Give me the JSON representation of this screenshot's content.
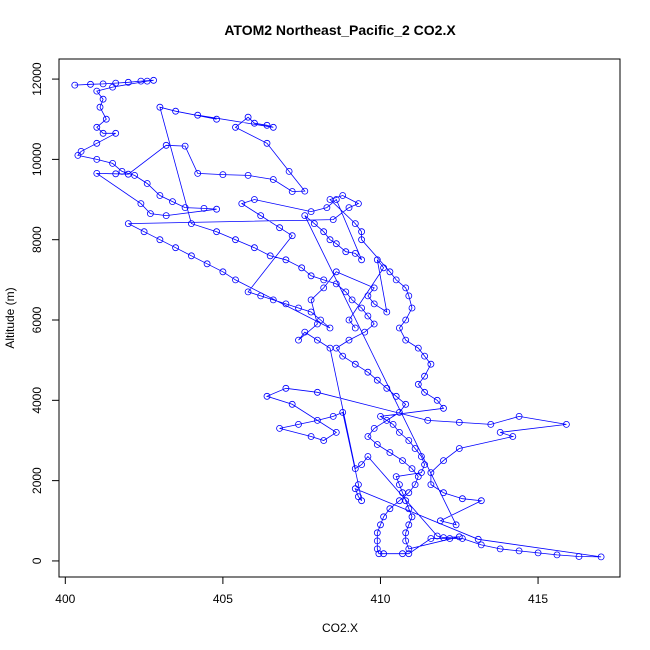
{
  "chart_data": {
    "type": "scatter",
    "title": "ATOM2 Northeast_Pacific_2 CO2.X",
    "xlabel": "CO2.X",
    "ylabel": "Altitude (m)",
    "xlim": [
      399.8,
      417.6
    ],
    "ylim": [
      -400,
      12500
    ],
    "xticks": [
      400,
      405,
      410,
      415
    ],
    "yticks": [
      0,
      2000,
      4000,
      6000,
      8000,
      10000,
      12000
    ],
    "grid": false,
    "marker": "open-circle",
    "color": "#0000ff",
    "series": [
      {
        "points": [
          [
            400.3,
            11850
          ],
          [
            400.8,
            11870
          ],
          [
            401.2,
            11880
          ],
          [
            401.6,
            11900
          ],
          [
            402.0,
            11920
          ],
          [
            402.4,
            11950
          ],
          [
            402.8,
            11970
          ],
          [
            402.6,
            11950
          ],
          [
            401.5,
            11800
          ],
          [
            401.0,
            11700
          ],
          [
            401.2,
            11500
          ],
          [
            401.1,
            11300
          ],
          [
            401.3,
            11000
          ],
          [
            401.0,
            10800
          ],
          [
            401.2,
            10650
          ],
          [
            401.6,
            10650
          ],
          [
            401.0,
            10400
          ],
          [
            400.5,
            10200
          ],
          [
            400.4,
            10100
          ],
          [
            401.0,
            10000
          ],
          [
            401.5,
            9900
          ],
          [
            401.8,
            9700
          ],
          [
            402.2,
            9600
          ],
          [
            402.6,
            9400
          ],
          [
            403.0,
            9100
          ],
          [
            403.4,
            8950
          ],
          [
            403.8,
            8800
          ],
          [
            404.4,
            8780
          ],
          [
            404.8,
            8760
          ],
          [
            403.2,
            8600
          ],
          [
            402.7,
            8650
          ],
          [
            402.4,
            8900
          ],
          [
            401.0,
            9650
          ],
          [
            401.6,
            9640
          ],
          [
            402.0,
            9630
          ],
          [
            403.2,
            10350
          ],
          [
            403.8,
            10330
          ],
          [
            404.2,
            9650
          ],
          [
            405.0,
            9620
          ],
          [
            405.8,
            9600
          ],
          [
            406.6,
            9500
          ],
          [
            407.2,
            9200
          ],
          [
            407.6,
            9210
          ],
          [
            407.1,
            9700
          ],
          [
            406.4,
            10400
          ],
          [
            405.4,
            10800
          ],
          [
            405.8,
            11050
          ],
          [
            406.0,
            10900
          ],
          [
            406.4,
            10850
          ],
          [
            406.6,
            10800
          ],
          [
            404.2,
            11100
          ],
          [
            404.8,
            11000
          ],
          [
            403.5,
            11200
          ],
          [
            403.0,
            11300
          ],
          [
            404.0,
            8400
          ],
          [
            404.8,
            8200
          ],
          [
            405.4,
            8000
          ],
          [
            406.0,
            7800
          ],
          [
            406.5,
            7600
          ],
          [
            407.0,
            7500
          ],
          [
            407.5,
            7300
          ],
          [
            407.8,
            7100
          ],
          [
            408.2,
            7000
          ],
          [
            408.6,
            6900
          ],
          [
            408.9,
            6700
          ],
          [
            409.1,
            6500
          ],
          [
            409.4,
            6300
          ],
          [
            409.6,
            6100
          ],
          [
            409.8,
            5900
          ],
          [
            409.5,
            5700
          ],
          [
            409.0,
            5500
          ],
          [
            408.6,
            5300
          ],
          [
            408.8,
            5100
          ],
          [
            409.2,
            4900
          ],
          [
            409.6,
            4700
          ],
          [
            409.9,
            4500
          ],
          [
            410.2,
            4300
          ],
          [
            410.5,
            4100
          ],
          [
            410.8,
            3900
          ],
          [
            410.6,
            3700
          ],
          [
            410.2,
            3500
          ],
          [
            409.8,
            3300
          ],
          [
            409.6,
            3100
          ],
          [
            409.9,
            2900
          ],
          [
            410.3,
            2700
          ],
          [
            410.7,
            2500
          ],
          [
            411.0,
            2300
          ],
          [
            411.2,
            2100
          ],
          [
            411.1,
            1900
          ],
          [
            410.9,
            1700
          ],
          [
            410.6,
            1500
          ],
          [
            410.3,
            1300
          ],
          [
            410.1,
            1100
          ],
          [
            410.0,
            900
          ],
          [
            409.9,
            700
          ],
          [
            409.9,
            500
          ],
          [
            409.9,
            300
          ],
          [
            409.95,
            180
          ],
          [
            410.1,
            180
          ],
          [
            410.7,
            180
          ],
          [
            410.9,
            180
          ],
          [
            411.6,
            560
          ],
          [
            412.2,
            560
          ],
          [
            412.6,
            560
          ],
          [
            413.2,
            400
          ],
          [
            413.8,
            300
          ],
          [
            414.4,
            250
          ],
          [
            415.0,
            200
          ],
          [
            415.6,
            150
          ],
          [
            416.3,
            110
          ],
          [
            417.0,
            100
          ],
          [
            413.1,
            540
          ],
          [
            409.2,
            1800
          ],
          [
            409.3,
            1600
          ],
          [
            409.4,
            1500
          ],
          [
            409.3,
            1900
          ],
          [
            408.8,
            3700
          ],
          [
            408.5,
            3600
          ],
          [
            408.0,
            3500
          ],
          [
            407.4,
            3400
          ],
          [
            406.8,
            3300
          ],
          [
            407.8,
            3100
          ],
          [
            408.2,
            3000
          ],
          [
            408.6,
            3200
          ],
          [
            407.2,
            3900
          ],
          [
            406.4,
            4100
          ],
          [
            407.0,
            4300
          ],
          [
            408.0,
            4200
          ],
          [
            411.5,
            3500
          ],
          [
            412.5,
            3450
          ],
          [
            413.5,
            3400
          ],
          [
            414.4,
            3600
          ],
          [
            415.9,
            3400
          ],
          [
            413.8,
            3200
          ],
          [
            414.2,
            3100
          ],
          [
            412.5,
            2800
          ],
          [
            412.0,
            2500
          ],
          [
            411.6,
            2200
          ],
          [
            411.6,
            1900
          ],
          [
            412.0,
            1700
          ],
          [
            412.6,
            1550
          ],
          [
            413.2,
            1500
          ],
          [
            411.9,
            1000
          ],
          [
            412.4,
            900
          ],
          [
            407.6,
            8600
          ],
          [
            407.9,
            8400
          ],
          [
            408.2,
            8200
          ],
          [
            408.4,
            8000
          ],
          [
            408.6,
            7900
          ],
          [
            408.9,
            7700
          ],
          [
            409.2,
            7660
          ],
          [
            409.4,
            7500
          ],
          [
            408.6,
            9000
          ],
          [
            408.3,
            8800
          ],
          [
            407.8,
            8700
          ],
          [
            406.0,
            9000
          ],
          [
            405.6,
            8900
          ],
          [
            406.2,
            8600
          ],
          [
            406.8,
            8300
          ],
          [
            407.2,
            8100
          ],
          [
            405.8,
            6700
          ],
          [
            406.2,
            6600
          ],
          [
            406.6,
            6500
          ],
          [
            407.0,
            6400
          ],
          [
            407.4,
            6300
          ],
          [
            407.8,
            6200
          ],
          [
            408.1,
            6000
          ],
          [
            408.4,
            5800
          ],
          [
            405.4,
            7000
          ],
          [
            405.0,
            7200
          ],
          [
            404.5,
            7400
          ],
          [
            404.0,
            7600
          ],
          [
            403.5,
            7800
          ],
          [
            403.0,
            8000
          ],
          [
            402.5,
            8200
          ],
          [
            402.0,
            8400
          ],
          [
            408.5,
            8500
          ],
          [
            409.0,
            8800
          ],
          [
            409.3,
            8900
          ],
          [
            408.8,
            9100
          ],
          [
            408.4,
            9000
          ],
          [
            409.2,
            8400
          ],
          [
            409.4,
            8200
          ],
          [
            409.4,
            8000
          ],
          [
            410.3,
            7200
          ],
          [
            410.5,
            7000
          ],
          [
            410.8,
            6800
          ],
          [
            410.9,
            6600
          ],
          [
            411.0,
            6300
          ],
          [
            410.8,
            6000
          ],
          [
            410.6,
            5800
          ],
          [
            410.8,
            5500
          ],
          [
            411.2,
            5300
          ],
          [
            411.4,
            5100
          ],
          [
            411.6,
            4900
          ],
          [
            411.4,
            4600
          ],
          [
            411.2,
            4400
          ],
          [
            411.4,
            4200
          ],
          [
            411.8,
            4000
          ],
          [
            412.0,
            3800
          ],
          [
            410.0,
            3600
          ],
          [
            410.4,
            3400
          ],
          [
            410.6,
            3200
          ],
          [
            410.9,
            3000
          ],
          [
            411.1,
            2800
          ],
          [
            411.3,
            2600
          ],
          [
            411.4,
            2400
          ],
          [
            411.3,
            2200
          ],
          [
            410.5,
            2100
          ],
          [
            410.6,
            1900
          ],
          [
            410.7,
            1700
          ],
          [
            410.8,
            1500
          ],
          [
            410.9,
            1300
          ],
          [
            411.0,
            1100
          ],
          [
            410.9,
            900
          ],
          [
            410.8,
            700
          ],
          [
            410.8,
            500
          ],
          [
            410.9,
            300
          ],
          [
            412.5,
            600
          ],
          [
            412.0,
            580
          ],
          [
            411.8,
            620
          ],
          [
            409.6,
            2600
          ],
          [
            409.4,
            2400
          ],
          [
            409.2,
            2300
          ],
          [
            408.4,
            5300
          ],
          [
            408.0,
            5500
          ],
          [
            407.6,
            5700
          ],
          [
            407.4,
            5500
          ],
          [
            408.0,
            5900
          ],
          [
            407.8,
            6500
          ],
          [
            408.2,
            6800
          ],
          [
            408.6,
            7200
          ],
          [
            409.8,
            6800
          ],
          [
            409.6,
            6600
          ],
          [
            409.8,
            6400
          ],
          [
            410.2,
            6200
          ],
          [
            409.9,
            7500
          ],
          [
            410.1,
            7300
          ],
          [
            409.0,
            6000
          ],
          [
            409.2,
            5800
          ]
        ]
      }
    ]
  }
}
